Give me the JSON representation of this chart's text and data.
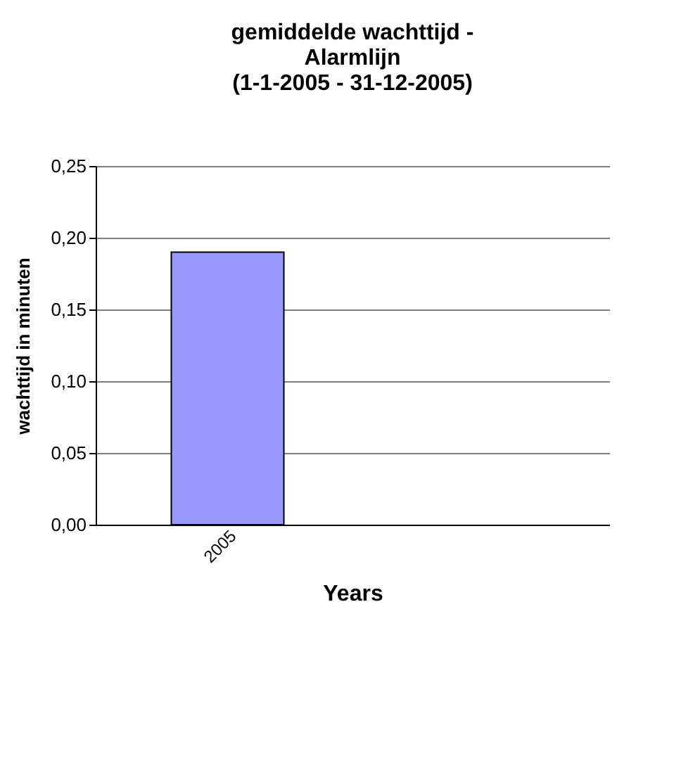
{
  "chart_data": {
    "type": "bar",
    "title": "gemiddelde wachttijd - Alarmlijn (1-1-2005 - 31-12-2005)",
    "xlabel": "Years",
    "ylabel": "wachttijd in minuten",
    "categories": [
      "2005",
      null
    ],
    "series": [
      {
        "color": "#9999ff",
        "values": [
          0.19,
          null
        ]
      }
    ],
    "ylim": [
      0,
      0.25
    ],
    "yticks": [
      {
        "value": 0,
        "label": "0,00"
      },
      {
        "value": 0.05,
        "label": "0,05"
      },
      {
        "value": 0.1,
        "label": "0,10"
      },
      {
        "value": 0.15,
        "label": "0,15"
      },
      {
        "value": 0.2,
        "label": "0,20"
      },
      {
        "value": 0.25,
        "label": "0,25"
      }
    ],
    "grid": "y"
  }
}
